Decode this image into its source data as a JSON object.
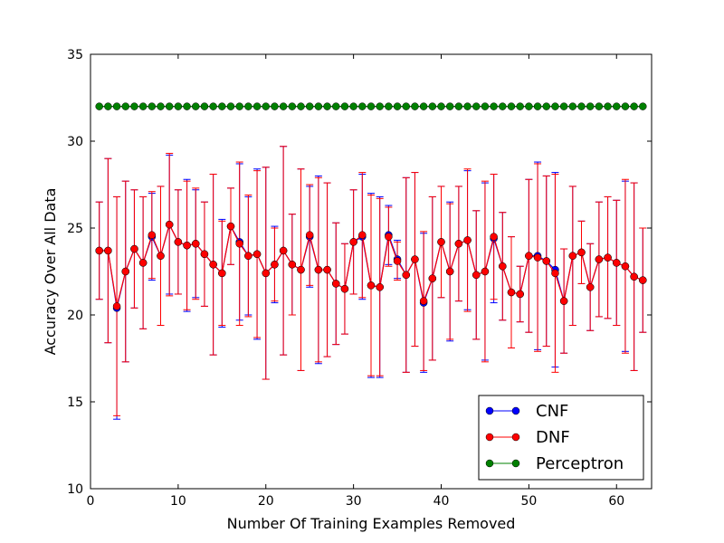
{
  "chart_data": {
    "type": "line",
    "xlabel": "Number Of Training Examples Removed",
    "ylabel": "Accuracy Over All Data",
    "xlim": [
      0,
      64
    ],
    "ylim": [
      10,
      35
    ],
    "xticks": [
      0,
      10,
      20,
      30,
      40,
      50,
      60
    ],
    "yticks": [
      10,
      15,
      20,
      25,
      30,
      35
    ],
    "grid": false,
    "legend_position": "bottom-right",
    "x": [
      1,
      2,
      3,
      4,
      5,
      6,
      7,
      8,
      9,
      10,
      11,
      12,
      13,
      14,
      15,
      16,
      17,
      18,
      19,
      20,
      21,
      22,
      23,
      24,
      25,
      26,
      27,
      28,
      29,
      30,
      31,
      32,
      33,
      34,
      35,
      36,
      37,
      38,
      39,
      40,
      41,
      42,
      43,
      44,
      45,
      46,
      47,
      48,
      49,
      50,
      51,
      52,
      53,
      54,
      55,
      56,
      57,
      58,
      59,
      60,
      61,
      62,
      63
    ],
    "series": [
      {
        "name": "CNF",
        "color": "#0000ff",
        "errorbar_color": "#0000ff",
        "values": [
          23.7,
          23.7,
          20.4,
          22.5,
          23.8,
          23.0,
          24.5,
          23.4,
          25.2,
          24.2,
          24.0,
          24.1,
          23.5,
          22.9,
          22.4,
          25.1,
          24.2,
          23.4,
          23.5,
          22.4,
          22.9,
          23.7,
          22.9,
          22.6,
          24.5,
          22.6,
          22.6,
          21.8,
          21.5,
          24.2,
          24.5,
          21.7,
          21.6,
          24.6,
          23.2,
          22.3,
          23.2,
          20.7,
          22.1,
          24.2,
          22.5,
          24.1,
          24.3,
          22.3,
          22.5,
          24.4,
          22.8,
          21.3,
          21.2,
          23.4,
          23.4,
          23.1,
          22.6,
          20.8,
          23.4,
          23.6,
          21.6,
          23.2,
          23.3,
          23.0,
          22.8,
          22.2,
          22.0
        ],
        "errors": [
          2.8,
          5.3,
          6.4,
          5.2,
          3.4,
          3.8,
          2.5,
          4.0,
          4.0,
          3.0,
          3.8,
          3.1,
          3.0,
          5.2,
          3.1,
          2.2,
          4.5,
          3.4,
          4.9,
          6.1,
          2.2,
          6.0,
          2.9,
          5.8,
          2.9,
          5.4,
          5.0,
          3.5,
          2.6,
          3.0,
          3.6,
          5.3,
          5.2,
          1.7,
          1.1,
          5.6,
          5.0,
          4.0,
          4.7,
          3.2,
          4.0,
          3.3,
          4.0,
          3.7,
          5.1,
          3.7,
          3.1,
          3.2,
          1.6,
          4.4,
          5.4,
          4.9,
          5.6,
          3.0,
          4.0,
          1.8,
          2.5,
          3.3,
          3.5,
          3.6,
          4.9,
          5.4,
          3.0
        ]
      },
      {
        "name": "DNF",
        "color": "#ff0000",
        "errorbar_color": "#ff0000",
        "values": [
          23.7,
          23.7,
          20.5,
          22.5,
          23.8,
          23.0,
          24.6,
          23.4,
          25.2,
          24.2,
          24.0,
          24.1,
          23.5,
          22.9,
          22.4,
          25.1,
          24.1,
          23.4,
          23.5,
          22.4,
          22.9,
          23.7,
          22.9,
          22.6,
          24.6,
          22.6,
          22.6,
          21.8,
          21.5,
          24.2,
          24.6,
          21.7,
          21.6,
          24.5,
          23.1,
          22.3,
          23.2,
          20.8,
          22.1,
          24.2,
          22.5,
          24.1,
          24.3,
          22.3,
          22.5,
          24.5,
          22.8,
          21.3,
          21.2,
          23.4,
          23.3,
          23.1,
          22.4,
          20.8,
          23.4,
          23.6,
          21.6,
          23.2,
          23.3,
          23.0,
          22.8,
          22.2,
          22.0
        ],
        "errors": [
          2.8,
          5.3,
          6.3,
          5.2,
          3.4,
          3.8,
          2.5,
          4.0,
          4.1,
          3.0,
          3.7,
          3.2,
          3.0,
          5.2,
          3.0,
          2.2,
          4.7,
          3.5,
          4.8,
          6.1,
          2.1,
          6.0,
          2.9,
          5.8,
          2.9,
          5.3,
          5.0,
          3.5,
          2.6,
          3.0,
          3.6,
          5.2,
          5.1,
          1.7,
          1.1,
          5.6,
          5.0,
          4.0,
          4.7,
          3.2,
          3.9,
          3.3,
          4.1,
          3.7,
          5.2,
          3.6,
          3.1,
          3.2,
          1.6,
          4.4,
          5.4,
          4.9,
          5.7,
          3.0,
          4.0,
          1.8,
          2.5,
          3.3,
          3.5,
          3.6,
          5.0,
          5.4,
          3.0
        ]
      },
      {
        "name": "Perceptron",
        "color": "#008000",
        "values": [
          32,
          32,
          32,
          32,
          32,
          32,
          32,
          32,
          32,
          32,
          32,
          32,
          32,
          32,
          32,
          32,
          32,
          32,
          32,
          32,
          32,
          32,
          32,
          32,
          32,
          32,
          32,
          32,
          32,
          32,
          32,
          32,
          32,
          32,
          32,
          32,
          32,
          32,
          32,
          32,
          32,
          32,
          32,
          32,
          32,
          32,
          32,
          32,
          32,
          32,
          32,
          32,
          32,
          32,
          32,
          32,
          32,
          32,
          32,
          32,
          32,
          32,
          32
        ]
      }
    ]
  }
}
